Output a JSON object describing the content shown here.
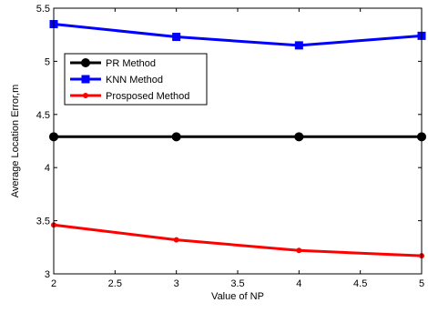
{
  "chart_data": {
    "type": "line",
    "x": [
      2,
      3,
      4,
      5
    ],
    "series": [
      {
        "name": "PR Method",
        "values": [
          4.29,
          4.29,
          4.29,
          4.29
        ],
        "color": "#000000",
        "marker": "circle"
      },
      {
        "name": "KNN Method",
        "values": [
          5.35,
          5.23,
          5.15,
          5.24
        ],
        "color": "#0000ff",
        "marker": "square"
      },
      {
        "name": "Prosposed Method",
        "values": [
          3.46,
          3.32,
          3.22,
          3.17
        ],
        "color": "#ff0000",
        "marker": "dot"
      }
    ],
    "xlabel": "Value of NP",
    "ylabel": "Average Location Error,m",
    "xlim": [
      2,
      5
    ],
    "ylim": [
      3,
      5.5
    ],
    "xticks": [
      2,
      2.5,
      3,
      3.5,
      4,
      4.5,
      5
    ],
    "xtick_labels": [
      "2",
      "2.5",
      "3",
      "3.5",
      "4",
      "4.5",
      "5"
    ],
    "yticks": [
      3,
      3.5,
      4,
      4.5,
      5,
      5.5
    ],
    "ytick_labels": [
      "3",
      "3.5",
      "4",
      "4.5",
      "5",
      "5.5"
    ],
    "grid": false,
    "legend_position": "upper-left"
  }
}
